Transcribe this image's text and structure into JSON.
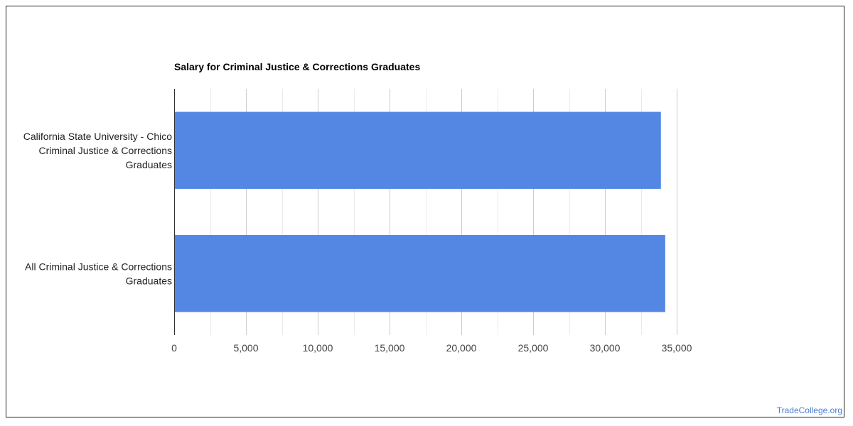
{
  "watermark": "TradeCollege.org",
  "chart_data": {
    "type": "bar",
    "orientation": "horizontal",
    "title": "Salary for Criminal Justice & Corrections Graduates",
    "categories": [
      [
        "California State University - Chico",
        "Criminal Justice & Corrections",
        "Graduates"
      ],
      [
        "All Criminal Justice & Corrections",
        "Graduates"
      ]
    ],
    "series": [
      {
        "values": [
          33900,
          34200
        ],
        "color": "#5387e3"
      }
    ],
    "xlim": [
      0,
      35000
    ],
    "xticks": [
      "0",
      "5,000",
      "10,000",
      "15,000",
      "20,000",
      "25,000",
      "30,000",
      "35,000"
    ],
    "grid": true,
    "legend": "none"
  }
}
